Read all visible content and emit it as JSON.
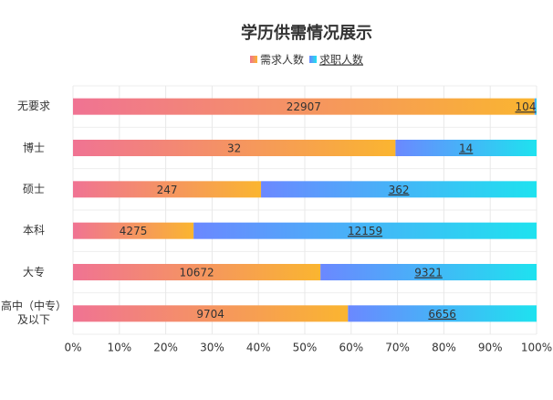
{
  "chart_data": {
    "type": "bar",
    "orientation": "horizontal",
    "stacking": "percent",
    "title": "学历供需情况展示",
    "categories": [
      "无要求",
      "博士",
      "硕士",
      "本科",
      "大专",
      "高中（中专）及以下"
    ],
    "series": [
      {
        "name": "需求人数",
        "color": "#f6946a",
        "gradient": [
          "#f07393",
          "#fab530"
        ],
        "values": [
          22907,
          32,
          247,
          4275,
          10672,
          9704
        ]
      },
      {
        "name": "求职人数",
        "color": "#3fb8f5",
        "gradient": [
          "#6b88ff",
          "#1ee2ef"
        ],
        "values": [
          104,
          14,
          362,
          12159,
          9321,
          6656
        ]
      }
    ],
    "xlim": [
      0,
      100
    ],
    "xticks": [
      {
        "value": 0,
        "label": "0%"
      },
      {
        "value": 10,
        "label": "10%"
      },
      {
        "value": 20,
        "label": "20%"
      },
      {
        "value": 30,
        "label": "30%"
      },
      {
        "value": 40,
        "label": "40%"
      },
      {
        "value": 50,
        "label": "50%"
      },
      {
        "value": 60,
        "label": "60%"
      },
      {
        "value": 70,
        "label": "70%"
      },
      {
        "value": 80,
        "label": "80%"
      },
      {
        "value": 90,
        "label": "90%"
      },
      {
        "value": 100,
        "label": "100%"
      }
    ],
    "grid": true,
    "legend": "top"
  }
}
